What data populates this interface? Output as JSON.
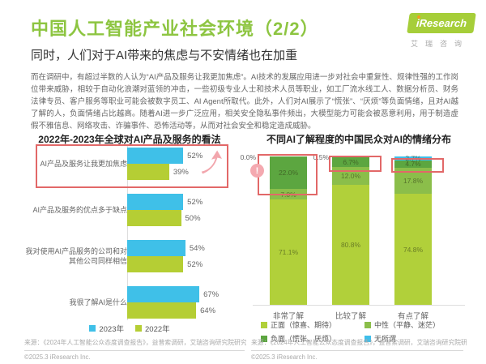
{
  "header": {
    "title": "中国人工智能产业社会环境（2/2）",
    "subtitle": "同时，人们对于AI带来的焦虑与不安情绪也在加重",
    "logo": {
      "brand": "iResearch",
      "brand_cn": "艾瑞咨询"
    }
  },
  "body_text": "而在调研中，有超过半数的人认为“AI产品及服务让我更加焦虑”。AI技术的发展应用进一步对社会中重复性、规律性强的工作岗位带来威胁，相较于自动化浪潮对蓝领的冲击，一些初级专业人士和技术人员等职业，如工厂流水线工人、数据分析员、财务法律专员、客户服务等职业可能会被数字员工、AI Agent所取代。此外，人们对AI展示了“慌张”、“厌烦”等负面情绪，且对AI越了解的人，负面情绪占比越高。随着AI进一步广泛应用，相关安全隐私事件频出，大模型能力可能会被恶意利用，用于制造虚假不雅信息、网络攻击、诈骗事件、恐怖活动等，从而对社会安全和稳定造成威胁。",
  "colors": {
    "brand_green": "#8DC541",
    "bar_blue_2023": "#3FC0E8",
    "bar_green_2022": "#B5CE34",
    "stack_positive": "#B1D03A",
    "stack_neutral": "#8BBE4A",
    "stack_negative": "#5CA640",
    "stack_indifferent": "#3FBEEA",
    "highlight_red": "#E26868",
    "annotation_pink": "#F4A9B0"
  },
  "chart_data": [
    {
      "type": "bar",
      "orientation": "horizontal",
      "title": "2022年-2023年全球对AI产品及服务的看法",
      "categories": [
        "AI产品及服务让我更加焦虑",
        "AI产品及服务的优点多于缺点",
        "我对使用AI产品服务的公司和对其他公司同样相信",
        "我很了解AI是什么"
      ],
      "series": [
        {
          "name": "2023年",
          "color": "#3FC0E8",
          "values": [
            52,
            52,
            54,
            67
          ]
        },
        {
          "name": "2022年",
          "color": "#B5CE34",
          "values": [
            39,
            50,
            52,
            64
          ]
        }
      ],
      "unit": "%",
      "xlim": [
        0,
        100
      ],
      "legend_position": "bottom",
      "annotations": {
        "highlighted_category": "AI产品及服务让我更加焦虑",
        "arrow_icon": "up-right-arrow"
      },
      "source": "来源：《2024年人工智能公众态度调查报告》，益普索调研，艾瑞咨询研究院研究绘制。",
      "copyright": "©2025.3 iResearch Inc."
    },
    {
      "type": "stacked-bar",
      "orientation": "vertical",
      "title": "不同AI了解程度的中国民众对AI的情绪分布",
      "categories": [
        "非常了解",
        "比较了解",
        "有点了解"
      ],
      "series": [
        {
          "name": "正面（惊喜、期待）",
          "color": "#B1D03A",
          "values": [
            71.1,
            80.8,
            74.8
          ]
        },
        {
          "name": "中性（平静、迷茫）",
          "color": "#8BBE4A",
          "values": [
            7.0,
            12.0,
            17.8
          ]
        },
        {
          "name": "负面（慌张、厌烦）",
          "color": "#5CA640",
          "values": [
            22.0,
            6.7,
            4.7
          ]
        },
        {
          "name": "无所谓",
          "color": "#3FBEEA",
          "values": [
            0.0,
            0.5,
            2.7
          ],
          "label_placement": [
            "outside",
            "outside",
            "inside"
          ]
        }
      ],
      "unit": "%",
      "ylim": [
        0,
        100
      ],
      "legend_position": "bottom",
      "annotations": {
        "highlighted_series": "负面（慌张、厌烦）",
        "alert_icon_text": "!"
      },
      "source": "来源：《2024年人工智能公众态度调查报告》，益普索调研，艾瑞咨询研究院研究绘制。",
      "copyright": "©2025.3 iResearch Inc."
    }
  ]
}
